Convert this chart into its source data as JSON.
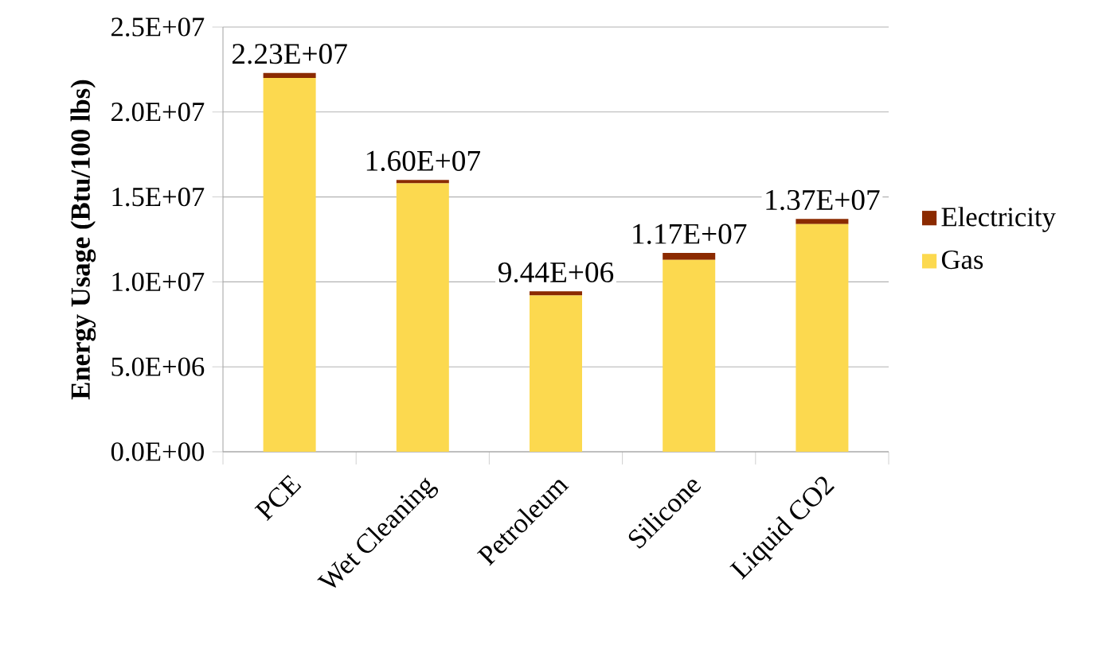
{
  "chart_data": {
    "type": "bar",
    "stacked": true,
    "ylabel": "Energy Usage (Btu/100 lbs)",
    "categories": [
      "PCE",
      "Wet Cleaning",
      "Petroleum",
      "Silicone",
      "Liquid CO2"
    ],
    "series": [
      {
        "name": "Gas",
        "color": "#fcd94f",
        "values": [
          22000000,
          15800000,
          9200000,
          11300000,
          13400000
        ]
      },
      {
        "name": "Electricity",
        "color": "#8b2a00",
        "values": [
          300000,
          200000,
          240000,
          400000,
          300000
        ]
      }
    ],
    "totals": [
      "2.23E+07",
      "1.60E+07",
      "9.44E+06",
      "1.17E+07",
      "1.37E+07"
    ],
    "ylim": [
      0,
      25000000
    ],
    "yticks": [
      {
        "value": 0,
        "label": "0.0E+00"
      },
      {
        "value": 5000000,
        "label": "5.0E+06"
      },
      {
        "value": 10000000,
        "label": "1.0E+07"
      },
      {
        "value": 15000000,
        "label": "1.5E+07"
      },
      {
        "value": 20000000,
        "label": "2.0E+07"
      },
      {
        "value": 25000000,
        "label": "2.5E+07"
      }
    ],
    "grid": "y",
    "legend": "right"
  }
}
